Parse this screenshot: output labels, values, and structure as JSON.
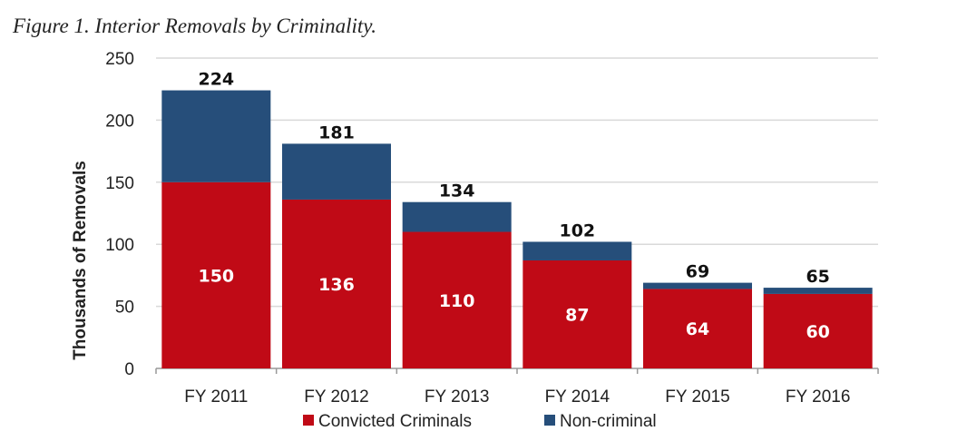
{
  "chart_data": {
    "type": "bar",
    "stacked": true,
    "title": "Figure 1. Interior Removals by Criminality.",
    "xlabel": "",
    "ylabel": "Thousands of Removals",
    "ylim": [
      0,
      250
    ],
    "yticks": [
      0,
      50,
      100,
      150,
      200,
      250
    ],
    "grid": true,
    "legend_position": "bottom",
    "categories": [
      "FY 2011",
      "FY 2012",
      "FY 2013",
      "FY 2014",
      "FY 2015",
      "FY 2016"
    ],
    "series": [
      {
        "name": "Convicted Criminals",
        "color": "#c00a16",
        "values": [
          150,
          136,
          110,
          87,
          64,
          60
        ]
      },
      {
        "name": "Non-criminal",
        "color": "#264e7a",
        "values": [
          74,
          45,
          24,
          15,
          5,
          5
        ]
      }
    ],
    "totals": [
      224,
      181,
      134,
      102,
      69,
      65
    ],
    "inner_labels": [
      150,
      136,
      110,
      87,
      64,
      60
    ]
  }
}
